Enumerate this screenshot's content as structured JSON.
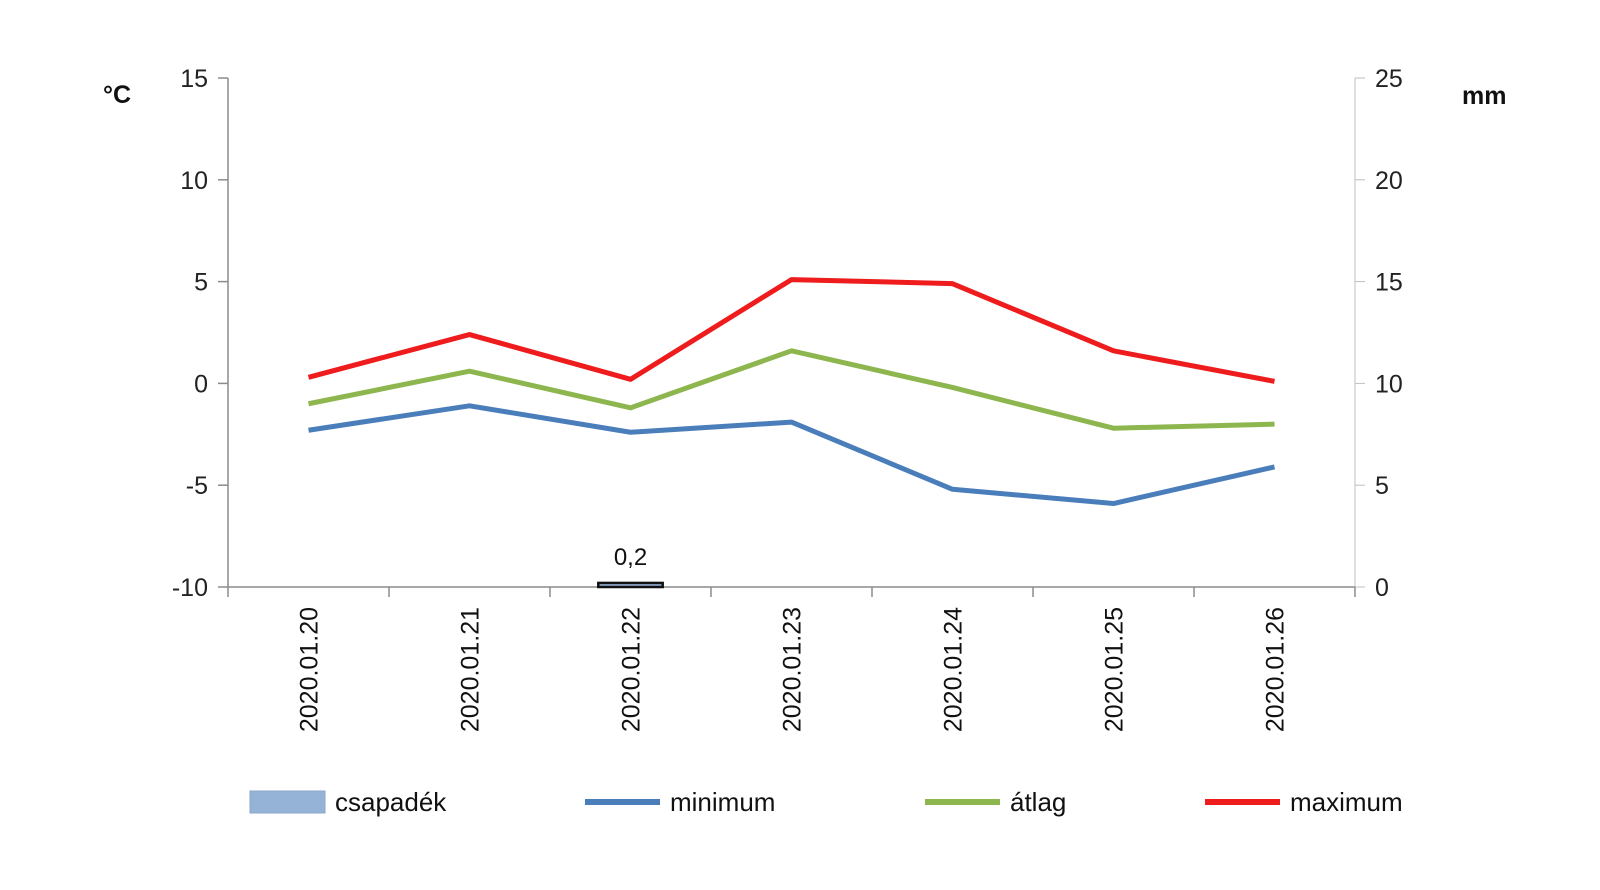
{
  "chart_data": {
    "type": "line",
    "categories": [
      "2020.01.20",
      "2020.01.21",
      "2020.01.22",
      "2020.01.23",
      "2020.01.24",
      "2020.01.25",
      "2020.01.26"
    ],
    "y_left": {
      "unit": "°C",
      "min": -10,
      "max": 15,
      "ticks": [
        15,
        10,
        5,
        0,
        -5,
        -10
      ]
    },
    "y_right": {
      "unit": "mm",
      "min": 0,
      "max": 25,
      "ticks": [
        25,
        20,
        15,
        10,
        5,
        0
      ]
    },
    "series": [
      {
        "name": "csapadék",
        "kind": "bar",
        "axis": "right",
        "color": "#95b3d7",
        "values": [
          0,
          0,
          0.2,
          0,
          0,
          0,
          0
        ],
        "labels": [
          "",
          "",
          "0,2",
          "",
          "",
          "",
          ""
        ]
      },
      {
        "name": "minimum",
        "kind": "line",
        "axis": "left",
        "color": "#4a7ebb",
        "values": [
          -2.3,
          -1.1,
          -2.4,
          -1.9,
          -5.2,
          -5.9,
          -4.1
        ]
      },
      {
        "name": "átlag",
        "kind": "line",
        "axis": "left",
        "color": "#8db64f",
        "values": [
          -1.0,
          0.6,
          -1.2,
          1.6,
          -0.2,
          -2.2,
          -2.0
        ]
      },
      {
        "name": "maximum",
        "kind": "line",
        "axis": "left",
        "color": "#ee1c1c",
        "values": [
          0.3,
          2.4,
          0.2,
          5.1,
          4.9,
          1.6,
          0.1
        ]
      }
    ],
    "legend": {
      "position": "bottom"
    },
    "grid": false
  }
}
